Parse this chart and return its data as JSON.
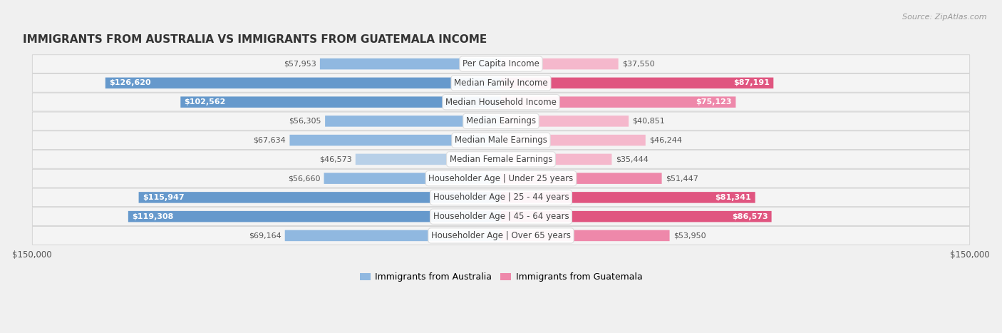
{
  "title": "IMMIGRANTS FROM AUSTRALIA VS IMMIGRANTS FROM GUATEMALA INCOME",
  "source": "Source: ZipAtlas.com",
  "categories": [
    "Per Capita Income",
    "Median Family Income",
    "Median Household Income",
    "Median Earnings",
    "Median Male Earnings",
    "Median Female Earnings",
    "Householder Age | Under 25 years",
    "Householder Age | 25 - 44 years",
    "Householder Age | 45 - 64 years",
    "Householder Age | Over 65 years"
  ],
  "australia_values": [
    57953,
    126620,
    102562,
    56305,
    67634,
    46573,
    56660,
    115947,
    119308,
    69164
  ],
  "guatemala_values": [
    37550,
    87191,
    75123,
    40851,
    46244,
    35444,
    51447,
    81341,
    86573,
    53950
  ],
  "australia_labels": [
    "$57,953",
    "$126,620",
    "$102,562",
    "$56,305",
    "$67,634",
    "$46,573",
    "$56,660",
    "$115,947",
    "$119,308",
    "$69,164"
  ],
  "guatemala_labels": [
    "$37,550",
    "$87,191",
    "$75,123",
    "$40,851",
    "$46,244",
    "$35,444",
    "$51,447",
    "$81,341",
    "$86,573",
    "$53,950"
  ],
  "australia_color_light": "#b8d0e8",
  "australia_color_mid": "#90b8e0",
  "australia_color_dark": "#6699cc",
  "guatemala_color_light": "#f5b8cc",
  "guatemala_color_mid": "#ee88aa",
  "guatemala_color_dark": "#e05580",
  "max_value": 150000,
  "bar_height": 0.58,
  "background_color": "#f0f0f0",
  "row_bg_color": "#f8f8f8",
  "row_border_color": "#e0e0e0",
  "legend_australia": "Immigrants from Australia",
  "legend_guatemala": "Immigrants from Guatemala",
  "threshold_dark": 80000,
  "threshold_mid": 50000
}
